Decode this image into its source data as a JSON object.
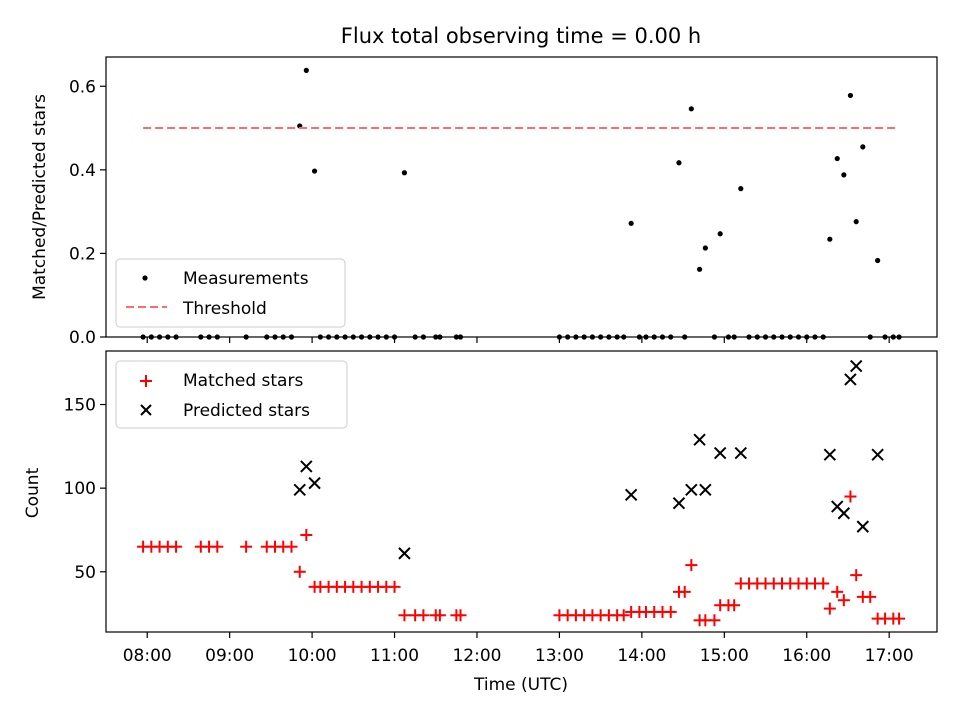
{
  "chart_data": [
    {
      "type": "scatter",
      "title": "Flux total observing time = 0.00 h",
      "xlabel": "",
      "ylabel": "Matched/Predicted stars",
      "xlim_hours": [
        7.5,
        17.58
      ],
      "ylim": [
        0,
        0.67
      ],
      "yticks": [
        0.0,
        0.2,
        0.4,
        0.6
      ],
      "ytick_labels": [
        "0.0",
        "0.2",
        "0.4",
        "0.6"
      ],
      "legend": {
        "position": "lower-left",
        "entries": [
          "Measurements",
          "Threshold"
        ]
      },
      "series": [
        {
          "name": "Measurements",
          "marker": "dot",
          "color": "#000000",
          "points": [
            [
              7.95,
              0
            ],
            [
              8.05,
              0
            ],
            [
              8.15,
              0
            ],
            [
              8.25,
              0
            ],
            [
              8.35,
              0
            ],
            [
              8.65,
              0
            ],
            [
              8.75,
              0
            ],
            [
              8.85,
              0
            ],
            [
              9.2,
              0
            ],
            [
              9.45,
              0
            ],
            [
              9.55,
              0
            ],
            [
              9.65,
              0
            ],
            [
              9.75,
              0
            ],
            [
              9.85,
              0.505
            ],
            [
              9.93,
              0.638
            ],
            [
              10.03,
              0.397
            ],
            [
              10.1,
              0
            ],
            [
              10.2,
              0
            ],
            [
              10.3,
              0
            ],
            [
              10.4,
              0
            ],
            [
              10.5,
              0
            ],
            [
              10.6,
              0
            ],
            [
              10.7,
              0
            ],
            [
              10.8,
              0
            ],
            [
              10.9,
              0
            ],
            [
              11.0,
              0
            ],
            [
              11.12,
              0.393
            ],
            [
              11.25,
              0
            ],
            [
              11.35,
              0
            ],
            [
              11.5,
              0
            ],
            [
              11.55,
              0
            ],
            [
              11.75,
              0
            ],
            [
              11.8,
              0
            ],
            [
              13.0,
              0
            ],
            [
              13.1,
              0
            ],
            [
              13.2,
              0
            ],
            [
              13.3,
              0
            ],
            [
              13.4,
              0
            ],
            [
              13.5,
              0
            ],
            [
              13.6,
              0
            ],
            [
              13.7,
              0
            ],
            [
              13.78,
              0
            ],
            [
              13.87,
              0.272
            ],
            [
              13.97,
              0
            ],
            [
              14.05,
              0
            ],
            [
              14.15,
              0
            ],
            [
              14.25,
              0
            ],
            [
              14.35,
              0
            ],
            [
              14.45,
              0.417
            ],
            [
              14.52,
              0
            ],
            [
              14.6,
              0.546
            ],
            [
              14.7,
              0.162
            ],
            [
              14.77,
              0.213
            ],
            [
              14.88,
              0
            ],
            [
              14.95,
              0.247
            ],
            [
              15.05,
              0
            ],
            [
              15.12,
              0
            ],
            [
              15.2,
              0.355
            ],
            [
              15.3,
              0
            ],
            [
              15.4,
              0
            ],
            [
              15.5,
              0
            ],
            [
              15.6,
              0
            ],
            [
              15.7,
              0
            ],
            [
              15.8,
              0
            ],
            [
              15.9,
              0
            ],
            [
              16.0,
              0
            ],
            [
              16.1,
              0
            ],
            [
              16.2,
              0
            ],
            [
              16.28,
              0.234
            ],
            [
              16.37,
              0.427
            ],
            [
              16.45,
              0.388
            ],
            [
              16.53,
              0.578
            ],
            [
              16.6,
              0.276
            ],
            [
              16.68,
              0.455
            ],
            [
              16.77,
              0
            ],
            [
              16.86,
              0.183
            ],
            [
              16.95,
              0
            ],
            [
              17.05,
              0
            ],
            [
              17.12,
              0
            ]
          ]
        },
        {
          "name": "Threshold",
          "style": "dashed",
          "color": "#ff6b6b",
          "points": [
            [
              7.95,
              0.5
            ],
            [
              17.12,
              0.5
            ]
          ]
        }
      ]
    },
    {
      "type": "scatter",
      "title": "",
      "xlabel": "Time (UTC)",
      "ylabel": "Count",
      "xlim_hours": [
        7.5,
        17.58
      ],
      "ylim": [
        14,
        182
      ],
      "yticks": [
        50,
        100,
        150
      ],
      "ytick_labels": [
        "50",
        "100",
        "150"
      ],
      "xticks_hours": [
        8,
        9,
        10,
        11,
        12,
        13,
        14,
        15,
        16,
        17
      ],
      "xtick_labels": [
        "08:00",
        "09:00",
        "10:00",
        "11:00",
        "12:00",
        "13:00",
        "14:00",
        "15:00",
        "16:00",
        "17:00"
      ],
      "legend": {
        "position": "top-left",
        "entries": [
          "Matched stars",
          "Predicted stars"
        ]
      },
      "series": [
        {
          "name": "Matched stars",
          "marker": "plus",
          "color": "#ff0000",
          "points": [
            [
              7.95,
              65
            ],
            [
              8.05,
              65
            ],
            [
              8.15,
              65
            ],
            [
              8.25,
              65
            ],
            [
              8.35,
              65
            ],
            [
              8.65,
              65
            ],
            [
              8.75,
              65
            ],
            [
              8.85,
              65
            ],
            [
              9.2,
              65
            ],
            [
              9.45,
              65
            ],
            [
              9.55,
              65
            ],
            [
              9.65,
              65
            ],
            [
              9.75,
              65
            ],
            [
              9.85,
              50
            ],
            [
              9.93,
              72
            ],
            [
              10.03,
              41
            ],
            [
              10.1,
              41
            ],
            [
              10.2,
              41
            ],
            [
              10.3,
              41
            ],
            [
              10.4,
              41
            ],
            [
              10.5,
              41
            ],
            [
              10.6,
              41
            ],
            [
              10.7,
              41
            ],
            [
              10.8,
              41
            ],
            [
              10.9,
              41
            ],
            [
              11.0,
              41
            ],
            [
              11.12,
              24
            ],
            [
              11.25,
              24
            ],
            [
              11.35,
              24
            ],
            [
              11.5,
              24
            ],
            [
              11.55,
              24
            ],
            [
              11.75,
              24
            ],
            [
              11.8,
              24
            ],
            [
              13.0,
              24
            ],
            [
              13.1,
              24
            ],
            [
              13.2,
              24
            ],
            [
              13.3,
              24
            ],
            [
              13.4,
              24
            ],
            [
              13.5,
              24
            ],
            [
              13.6,
              24
            ],
            [
              13.7,
              24
            ],
            [
              13.78,
              24
            ],
            [
              13.87,
              26
            ],
            [
              13.97,
              26
            ],
            [
              14.05,
              26
            ],
            [
              14.15,
              26
            ],
            [
              14.25,
              26
            ],
            [
              14.35,
              26
            ],
            [
              14.45,
              38
            ],
            [
              14.52,
              38
            ],
            [
              14.6,
              54
            ],
            [
              14.7,
              21
            ],
            [
              14.77,
              21
            ],
            [
              14.88,
              21
            ],
            [
              14.95,
              30
            ],
            [
              15.05,
              30
            ],
            [
              15.12,
              30
            ],
            [
              15.2,
              43
            ],
            [
              15.3,
              43
            ],
            [
              15.4,
              43
            ],
            [
              15.5,
              43
            ],
            [
              15.6,
              43
            ],
            [
              15.7,
              43
            ],
            [
              15.8,
              43
            ],
            [
              15.9,
              43
            ],
            [
              16.0,
              43
            ],
            [
              16.1,
              43
            ],
            [
              16.2,
              43
            ],
            [
              16.28,
              28
            ],
            [
              16.37,
              38
            ],
            [
              16.45,
              33
            ],
            [
              16.53,
              95
            ],
            [
              16.6,
              48
            ],
            [
              16.68,
              35
            ],
            [
              16.77,
              35
            ],
            [
              16.86,
              22
            ],
            [
              16.95,
              22
            ],
            [
              17.05,
              22
            ],
            [
              17.12,
              22
            ]
          ]
        },
        {
          "name": "Predicted stars",
          "marker": "x",
          "color": "#000000",
          "points": [
            [
              9.85,
              99
            ],
            [
              9.93,
              113
            ],
            [
              10.03,
              103
            ],
            [
              11.12,
              61
            ],
            [
              13.87,
              96
            ],
            [
              14.45,
              91
            ],
            [
              14.6,
              99
            ],
            [
              14.7,
              129
            ],
            [
              14.77,
              99
            ],
            [
              14.95,
              121
            ],
            [
              15.2,
              121
            ],
            [
              16.28,
              120
            ],
            [
              16.37,
              89
            ],
            [
              16.45,
              85
            ],
            [
              16.53,
              165
            ],
            [
              16.6,
              173
            ],
            [
              16.68,
              77
            ],
            [
              16.86,
              120
            ]
          ]
        }
      ]
    }
  ]
}
